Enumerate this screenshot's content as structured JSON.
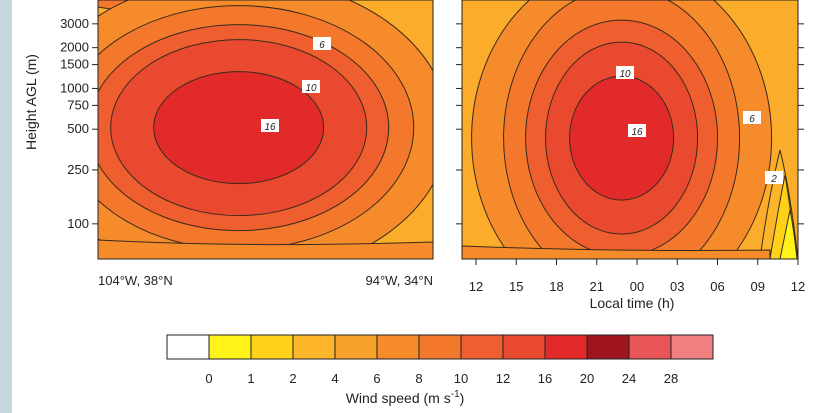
{
  "figure": {
    "colorbar_title": "Wind speed (m s",
    "colorbar_title_sup": "-1",
    "colorbar_title_end": ")"
  },
  "colors": {
    "sidebar": "#c7d5df",
    "frame": "#222222",
    "contour": "#3a2a1a",
    "label_box": "#ffffff"
  },
  "chart_data": [
    {
      "type": "heatmap",
      "panel": "left",
      "title": "",
      "xlabel": "",
      "ylabel": "Height AGL (m)",
      "x_tick_labels": [
        "104°W, 38°N",
        "94°W, 34°N"
      ],
      "yscale": "log",
      "ylim": [
        55,
        4500
      ],
      "yticks": [
        100,
        250,
        500,
        750,
        1000,
        1500,
        2000,
        3000
      ],
      "max_speed_ms": 18.5,
      "max_location": {
        "x_fraction": 0.42,
        "height_m": 480
      },
      "contour_labels": [
        {
          "value": "6"
        },
        {
          "value": "10"
        },
        {
          "value": "16"
        }
      ]
    },
    {
      "type": "heatmap",
      "panel": "right",
      "title": "",
      "xlabel": "Local time (h)",
      "x_tick_labels": [
        "12",
        "15",
        "18",
        "21",
        "00",
        "03",
        "06",
        "09",
        "12"
      ],
      "yscale": "log",
      "ylim": [
        55,
        4500
      ],
      "max_speed_ms": 18.0,
      "max_location": {
        "local_time_h": 23.0,
        "height_m": 430
      },
      "contour_labels": [
        {
          "value": "10"
        },
        {
          "value": "16"
        },
        {
          "value": "6"
        },
        {
          "value": "2"
        }
      ]
    },
    {
      "type": "colorbar",
      "levels": [
        "0",
        "1",
        "2",
        "4",
        "6",
        "8",
        "10",
        "12",
        "16",
        "20",
        "24",
        "28"
      ],
      "colors": [
        "#ffffff",
        "#fff31a",
        "#ffd21a",
        "#fdb52a",
        "#f9a22b",
        "#f68b2c",
        "#f4782c",
        "#ef5e2e",
        "#e94a2f",
        "#e32a2b",
        "#9e1520",
        "#ea5658",
        "#f08080"
      ]
    }
  ]
}
